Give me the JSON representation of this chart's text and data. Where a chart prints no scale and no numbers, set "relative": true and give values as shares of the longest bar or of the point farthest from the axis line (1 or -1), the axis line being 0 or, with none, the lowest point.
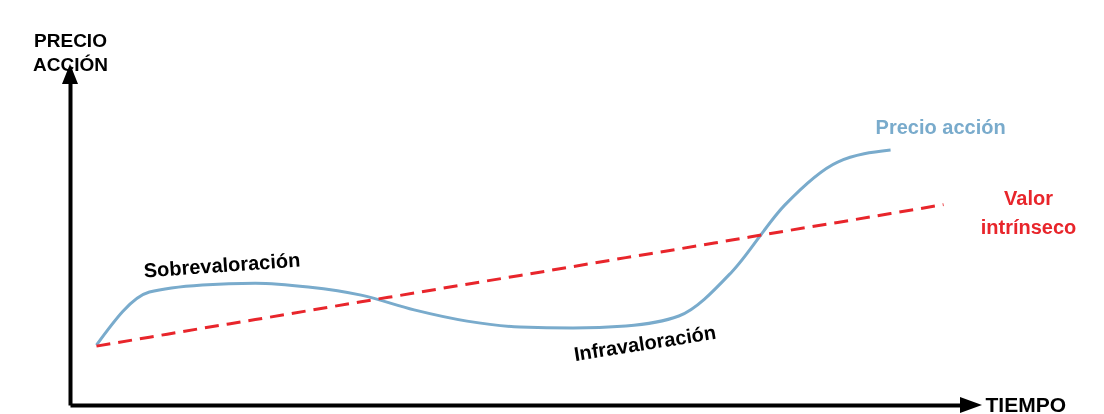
{
  "chart_data": {
    "type": "line",
    "relative": true,
    "xlabel": "TIEMPO",
    "ylabel": "PRECIO ACCIÓN",
    "categories": [
      null,
      null,
      null,
      null,
      null,
      null,
      null,
      null,
      null,
      null,
      null,
      null,
      null,
      null,
      null,
      null,
      null
    ],
    "series": [
      {
        "name": "Precio acción",
        "color": "#79abcc",
        "line_style": "solid",
        "values": [
          0.235,
          0.443,
          0.471,
          0.478,
          0.463,
          0.431,
          0.373,
          0.329,
          0.306,
          0.302,
          0.31,
          0.349,
          0.522,
          0.784,
          0.953,
          1.0,
          null
        ]
      },
      {
        "name": "Valor intrínseco",
        "color": "#e8252b",
        "line_style": "dashed",
        "values": [
          0.231,
          0.266,
          0.301,
          0.335,
          0.37,
          0.405,
          0.439,
          0.474,
          0.508,
          0.543,
          0.578,
          0.612,
          0.647,
          0.682,
          0.716,
          0.751,
          0.786
        ]
      }
    ],
    "annotations": [
      "Sobrevaloración",
      "Infravaloración"
    ],
    "grid": false,
    "marker": "none"
  }
}
